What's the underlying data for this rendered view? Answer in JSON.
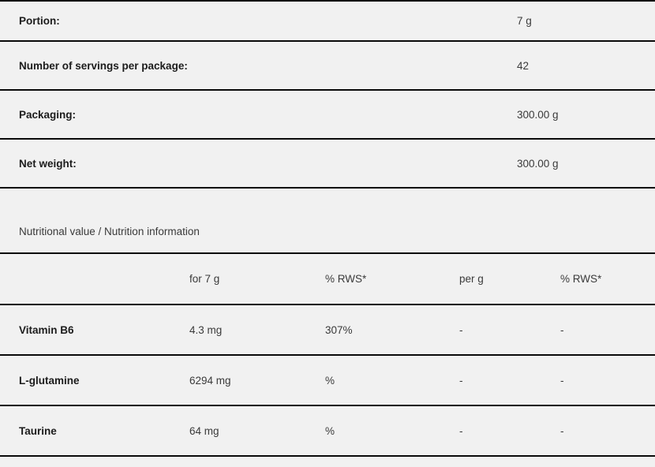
{
  "colors": {
    "background": "#f1f1f1",
    "divider": "#0a0a0a",
    "label_text": "#1c1c1c",
    "value_text": "#3a3a3a"
  },
  "product_specs": {
    "rows": [
      {
        "label": "Portion:",
        "value": "7 g"
      },
      {
        "label": "Number of servings per package:",
        "value": "42"
      },
      {
        "label": "Packaging:",
        "value": "300.00 g"
      },
      {
        "label": "Net weight:",
        "value": "300.00 g"
      }
    ]
  },
  "nutrition": {
    "section_title": "Nutritional value / Nutrition information",
    "columns": [
      "for 7 g",
      "% RWS*",
      "per g",
      "% RWS*"
    ],
    "rows": [
      {
        "name": "Vitamin B6",
        "per_portion": "4.3 mg",
        "rws_portion": "307%",
        "per_g": "-",
        "rws_g": "-"
      },
      {
        "name": "L-glutamine",
        "per_portion": "6294 mg",
        "rws_portion": "%",
        "per_g": "-",
        "rws_g": "-"
      },
      {
        "name": "Taurine",
        "per_portion": "64 mg",
        "rws_portion": "%",
        "per_g": "-",
        "rws_g": "-"
      }
    ]
  }
}
